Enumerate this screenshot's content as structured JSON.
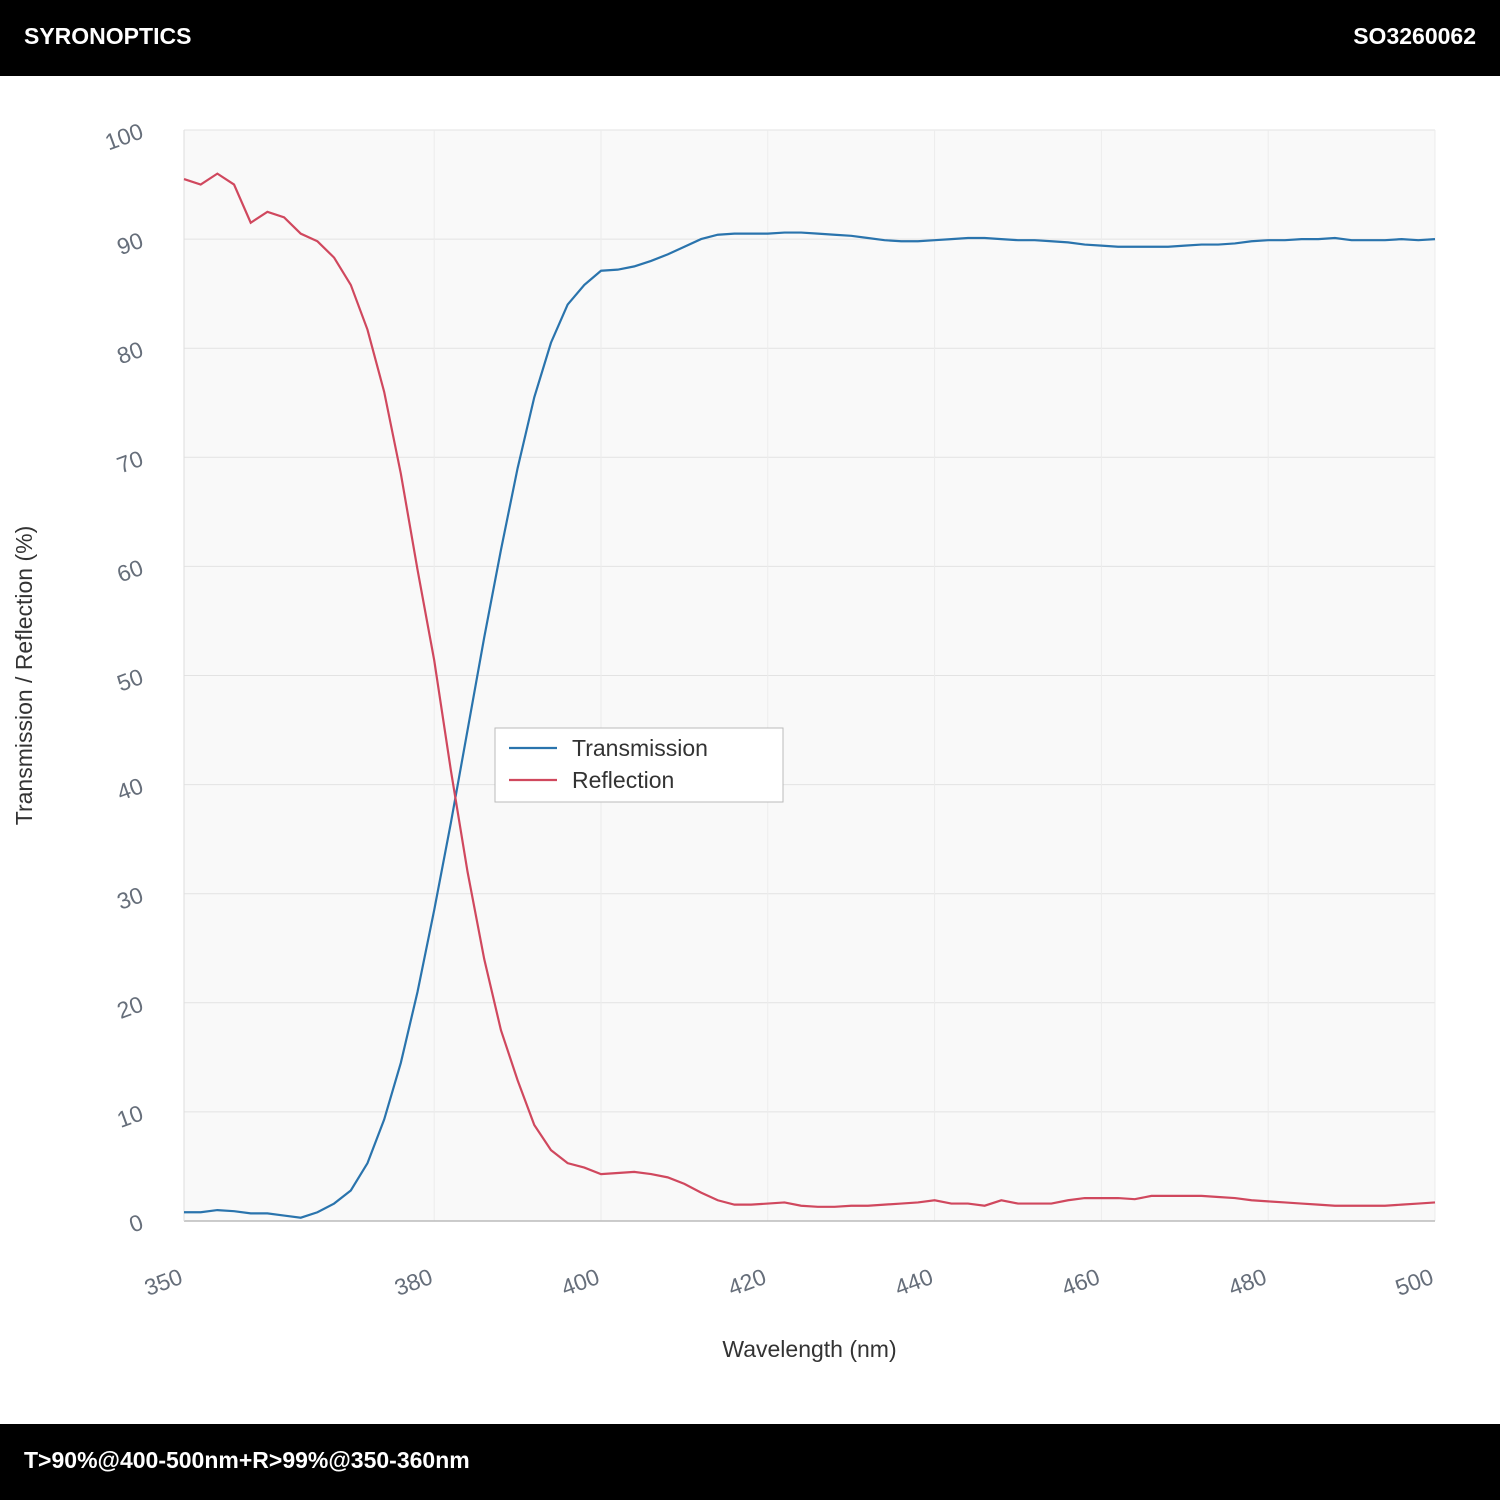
{
  "header": {
    "brand": "SYRONOPTICS",
    "code": "SO3260062"
  },
  "footer": {
    "spec": "T>90%@400-500nm+R>99%@350-360nm"
  },
  "chart_data": {
    "type": "line",
    "x_label": "Wavelength (nm)",
    "y_label": "Transmission / Reflection (%)",
    "x": [
      350,
      352,
      354,
      356,
      358,
      360,
      362,
      364,
      366,
      368,
      370,
      372,
      374,
      376,
      378,
      380,
      382,
      384,
      386,
      388,
      390,
      392,
      394,
      396,
      398,
      400,
      402,
      404,
      406,
      408,
      410,
      412,
      414,
      416,
      418,
      420,
      422,
      424,
      426,
      428,
      430,
      432,
      434,
      436,
      438,
      440,
      442,
      444,
      446,
      448,
      450,
      452,
      454,
      456,
      458,
      460,
      462,
      464,
      466,
      468,
      470,
      472,
      474,
      476,
      478,
      480,
      482,
      484,
      486,
      488,
      490,
      492,
      494,
      496,
      498,
      500
    ],
    "series": [
      {
        "name": "Transmission",
        "color": "#2a74ad",
        "values": [
          0.8,
          0.8,
          1.0,
          0.9,
          0.7,
          0.7,
          0.5,
          0.3,
          0.8,
          1.6,
          2.8,
          5.3,
          9.3,
          14.5,
          21,
          28.5,
          36.5,
          45,
          53.5,
          61.5,
          69,
          75.5,
          80.5,
          84,
          85.8,
          87.1,
          87.2,
          87.5,
          88,
          88.6,
          89.3,
          90,
          90.4,
          90.5,
          90.5,
          90.5,
          90.6,
          90.6,
          90.5,
          90.4,
          90.3,
          90.1,
          89.9,
          89.8,
          89.8,
          89.9,
          90.0,
          90.1,
          90.1,
          90.0,
          89.9,
          89.9,
          89.8,
          89.7,
          89.5,
          89.4,
          89.3,
          89.3,
          89.3,
          89.3,
          89.4,
          89.5,
          89.5,
          89.6,
          89.8,
          89.9,
          89.9,
          90.0,
          90.0,
          90.1,
          89.9,
          89.9,
          89.9,
          90.0,
          89.9,
          90.0
        ]
      },
      {
        "name": "Reflection",
        "color": "#d0485e",
        "values": [
          95.5,
          95.0,
          96.0,
          95.0,
          91.5,
          92.5,
          92.0,
          90.5,
          89.8,
          88.3,
          85.8,
          81.7,
          76,
          68.5,
          59.7,
          51.4,
          41.3,
          32,
          24,
          17.5,
          12.9,
          8.8,
          6.5,
          5.3,
          4.9,
          4.3,
          4.4,
          4.5,
          4.3,
          4.0,
          3.4,
          2.6,
          1.9,
          1.5,
          1.5,
          1.6,
          1.7,
          1.4,
          1.3,
          1.3,
          1.4,
          1.4,
          1.5,
          1.6,
          1.7,
          1.9,
          1.6,
          1.6,
          1.4,
          1.9,
          1.6,
          1.6,
          1.6,
          1.9,
          2.1,
          2.1,
          2.1,
          2.0,
          2.3,
          2.3,
          2.3,
          2.3,
          2.2,
          2.1,
          1.9,
          1.8,
          1.7,
          1.6,
          1.5,
          1.4,
          1.4,
          1.4,
          1.4,
          1.5,
          1.6,
          1.7
        ]
      }
    ],
    "xlim": [
      350,
      500
    ],
    "xticks": [
      350,
      380,
      400,
      420,
      440,
      460,
      480,
      500
    ],
    "ylim": [
      0,
      100
    ],
    "yticks": [
      0,
      10,
      20,
      30,
      40,
      50,
      60,
      70,
      80,
      90,
      100
    ],
    "grid": true,
    "legend": "center"
  }
}
